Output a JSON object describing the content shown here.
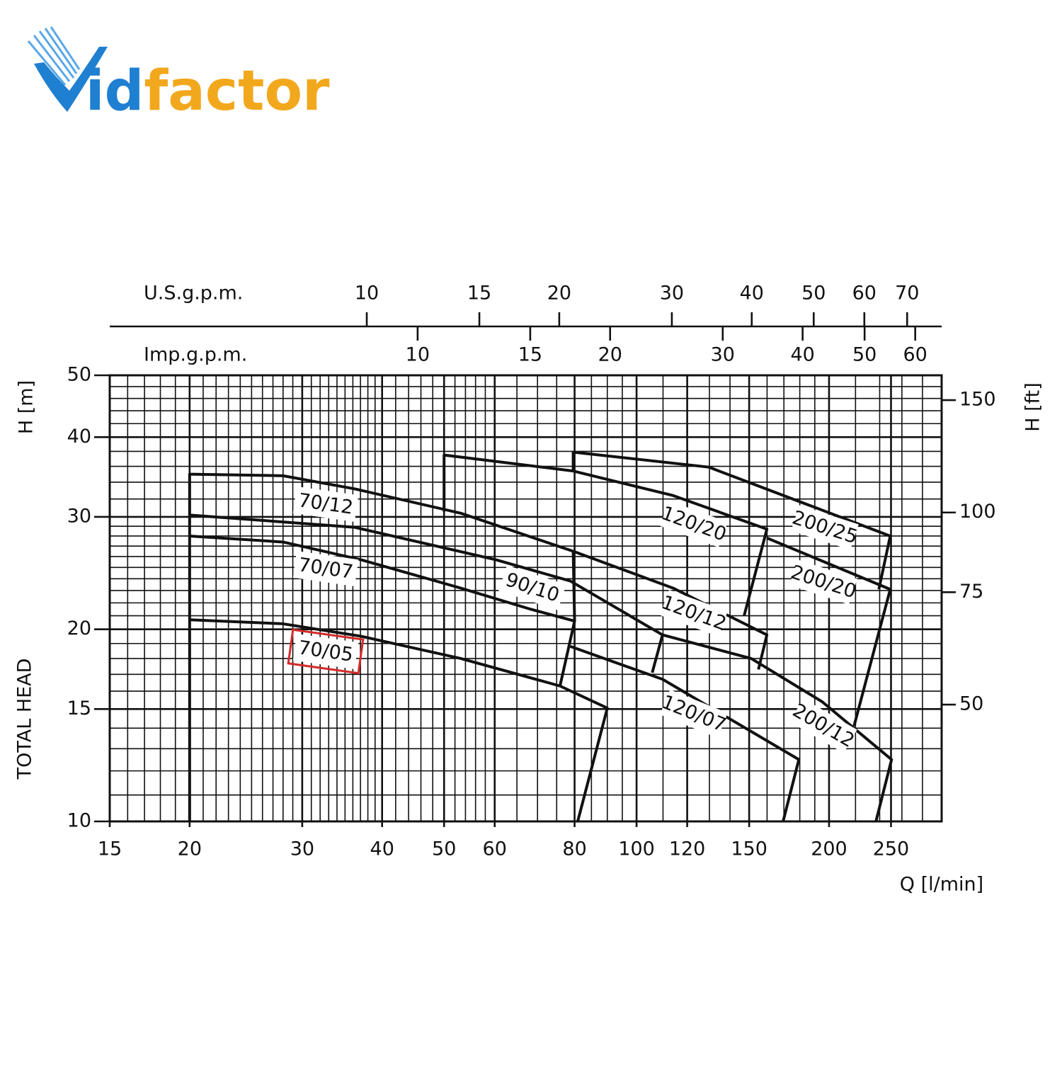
{
  "logo": {
    "parts": [
      "V",
      "id",
      "factor"
    ]
  },
  "chart_data": {
    "type": "line",
    "x_label": "Q [l/min]",
    "y_label": "H [m]",
    "y_label_2": "TOTAL HEAD",
    "y2_label": "H [ft]",
    "xlog": true,
    "ylog": true,
    "xlim": [
      15,
      300
    ],
    "xticks": [
      15,
      20,
      30,
      40,
      50,
      60,
      80,
      100,
      120,
      150,
      200,
      250
    ],
    "ylim": [
      10,
      50
    ],
    "yticks": [
      10,
      15,
      20,
      30,
      40,
      50
    ],
    "y2lim": [
      32.81,
      164.04
    ],
    "y2ticks": [
      50,
      75,
      100,
      150
    ],
    "xgrid": [
      16,
      17,
      18,
      19,
      21,
      22,
      23,
      24,
      25,
      26,
      27,
      28,
      29,
      31,
      32,
      33,
      34,
      35,
      36,
      37,
      38,
      39,
      42,
      44,
      46,
      48,
      52,
      54,
      56,
      58,
      65,
      70,
      75,
      85,
      90,
      95,
      110,
      130,
      140,
      160,
      170,
      180,
      190,
      220,
      240,
      260,
      280
    ],
    "ygrid": [
      11,
      12,
      13,
      14,
      16,
      17,
      18,
      19,
      21,
      22,
      23,
      24,
      25,
      26,
      27,
      28,
      29,
      32,
      34,
      36,
      38,
      42,
      44,
      46,
      48
    ],
    "top_axes": [
      {
        "label": "U.S.g.p.m.",
        "lim": [
          3.963,
          79.26
        ],
        "ticks": [
          10,
          15,
          20,
          30,
          40,
          50,
          60,
          70
        ]
      },
      {
        "label": "Imp.g.p.m.",
        "lim": [
          3.3,
          65.99
        ],
        "ticks": [
          10,
          15,
          20,
          30,
          40,
          50,
          60
        ]
      }
    ],
    "color": "#111111",
    "highlight_color": "#d42a2a",
    "series": [
      {
        "name": "70/12",
        "x": [
          20,
          20,
          28,
          36.2,
          53.1,
          79.6,
          80
        ],
        "values": [
          10,
          35,
          34.8,
          33.2,
          30.4,
          26.5,
          20.6
        ]
      },
      {
        "name": "70/07",
        "x": [
          20,
          28,
          37.1,
          53.1,
          68.3,
          80,
          75.9
        ],
        "values": [
          28,
          27.4,
          25.7,
          23.2,
          21.5,
          20.6,
          16.3
        ]
      },
      {
        "name": "70/05",
        "highlight": true,
        "x": [
          20,
          28,
          37.1,
          53.1,
          75.9,
          90,
          80.9
        ],
        "values": [
          20.7,
          20.4,
          19.5,
          18,
          16.3,
          15.05,
          10
        ]
      },
      {
        "name": "90/10",
        "x": [
          20,
          36.2,
          60.3,
          78.8,
          109.8,
          105.8
        ],
        "values": [
          30.2,
          28.9,
          25.7,
          23.8,
          19.6,
          17.1
        ]
      },
      {
        "name": "120/20",
        "x": [
          50,
          50,
          79.6,
          114.1,
          159.9,
          147.3
        ],
        "values": [
          30.6,
          37.5,
          35.4,
          32.4,
          28.7,
          21
        ]
      },
      {
        "name": "120/12",
        "x": [
          79.6,
          114.1,
          159.9,
          155.1
        ],
        "values": [
          26.5,
          23.2,
          19.6,
          17.3
        ]
      },
      {
        "name": "120/07",
        "x": [
          78.8,
          109.8,
          179.4,
          169.5
        ],
        "values": [
          18.8,
          16.7,
          12.5,
          10
        ]
      },
      {
        "name": "200/25",
        "x": [
          79.6,
          79.6,
          129.7,
          249.3,
          239.3
        ],
        "values": [
          35.4,
          37.9,
          35.9,
          28,
          23.1
        ]
      },
      {
        "name": "200/20",
        "x": [
          159.9,
          249.3,
          218.8
        ],
        "values": [
          27.8,
          23.1,
          14.1
        ]
      },
      {
        "name": "200/12",
        "x": [
          109.8,
          151.1,
          195.1,
          250.5,
          236.8
        ],
        "values": [
          19.6,
          18,
          15.4,
          12.5,
          10
        ]
      }
    ]
  }
}
